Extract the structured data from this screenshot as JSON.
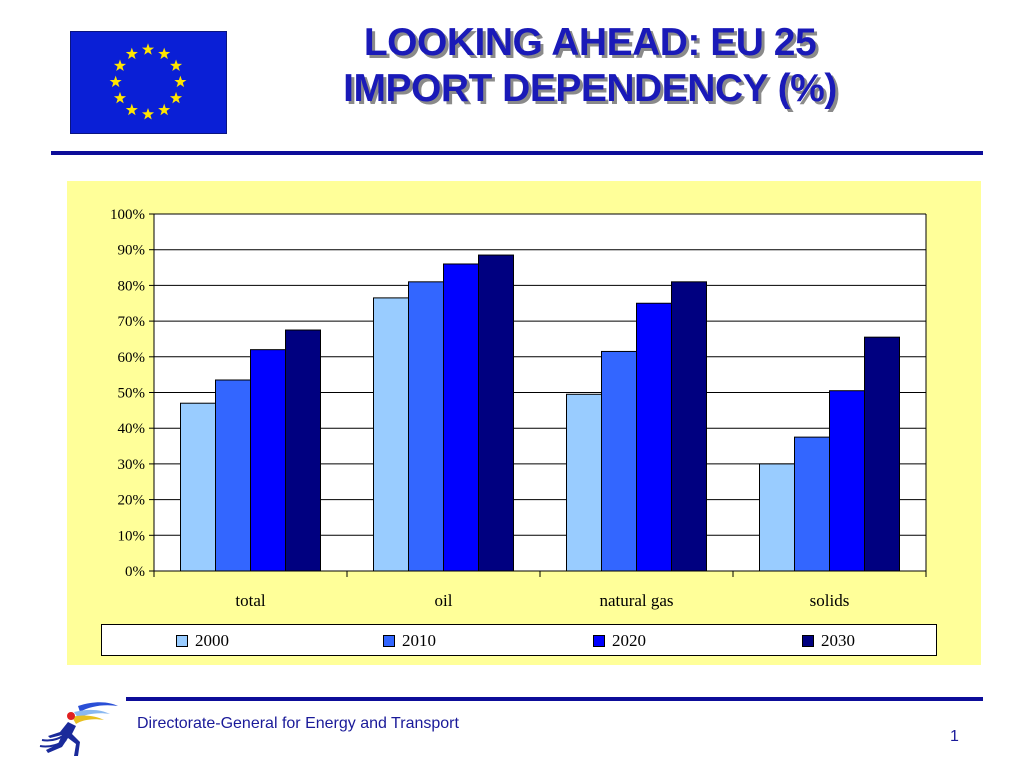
{
  "slide": {
    "title_line1": "LOOKING AHEAD: EU 25",
    "title_line2": "IMPORT DEPENDENCY (%)",
    "footer": "Directorate-General for Energy and Transport",
    "page_number": "1",
    "logo_icon": "eu-flag-icon",
    "footer_logo_icon": "dg-tren-logo-icon"
  },
  "colors": {
    "title": "#1a1ab8",
    "rule": "#0d0d99",
    "panel": "#ffff99",
    "flag": "#0a1fd6",
    "star": "#ffe500"
  },
  "chart_data": {
    "type": "bar",
    "categories": [
      "total",
      "oil",
      "natural gas",
      "solids"
    ],
    "series": [
      {
        "name": "2000",
        "color": "#99ccff",
        "values": [
          47,
          76.5,
          49.5,
          30
        ]
      },
      {
        "name": "2010",
        "color": "#3366ff",
        "values": [
          53.5,
          81,
          61.5,
          37.5
        ]
      },
      {
        "name": "2020",
        "color": "#0000ff",
        "values": [
          62,
          86,
          75,
          50.5
        ]
      },
      {
        "name": "2030",
        "color": "#000080",
        "values": [
          67.5,
          88.5,
          81,
          65.5
        ]
      }
    ],
    "y_ticks": [
      "0%",
      "10%",
      "20%",
      "30%",
      "40%",
      "50%",
      "60%",
      "70%",
      "80%",
      "90%",
      "100%"
    ],
    "ylim": [
      0,
      100
    ],
    "grid": true,
    "legend_position": "bottom"
  }
}
